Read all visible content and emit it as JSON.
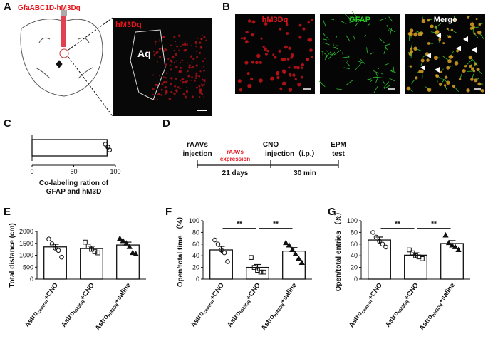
{
  "panel_labels": [
    "A",
    "B",
    "C",
    "D",
    "E",
    "F",
    "G"
  ],
  "panel_a": {
    "construct": "GfaABC1D-hM3Dq",
    "inset_label": "hM3Dq",
    "region": "Aq"
  },
  "panel_b": {
    "channels": [
      {
        "name": "hM3Dq",
        "color": "#e8141b"
      },
      {
        "name": "GFAP",
        "color": "#22cc22"
      },
      {
        "name": "Merge",
        "color": "#ffffff"
      }
    ]
  },
  "panel_d": {
    "injection": [
      "rAAVs",
      "injection"
    ],
    "expression": [
      "rAAVs",
      "expression"
    ],
    "cno": [
      "CNO",
      "injection（i.p.）"
    ],
    "test": [
      "EPM",
      "test"
    ],
    "intervals": [
      "21 days",
      "30 min"
    ]
  },
  "chart_data": [
    {
      "type": "hbar",
      "values": [
        90
      ],
      "errors": [
        1.5
      ],
      "points": [
        [
          88,
          91,
          93
        ]
      ],
      "markers": [
        "circle"
      ],
      "color": "#ffffff",
      "xlim": [
        0,
        100
      ],
      "xticks": [
        0,
        50,
        100
      ],
      "x_label": [
        "Co-labeling ration of",
        "GFAP and hM3D"
      ]
    },
    {
      "type": "bar",
      "categories": [
        [
          "Astro",
          "control",
          "+CNO"
        ],
        [
          "Astro",
          "hM3Dq",
          "+CNO"
        ],
        [
          "Astro",
          "hM3Dq",
          "+saline"
        ]
      ],
      "values": [
        1350,
        1280,
        1430
      ],
      "errors": [
        110,
        100,
        120
      ],
      "points": [
        [
          1680,
          1480,
          1300,
          1200,
          920
        ],
        [
          1550,
          1380,
          1250,
          1150,
          1100
        ],
        [
          1700,
          1600,
          1500,
          1350,
          1100,
          1050
        ]
      ],
      "markers": [
        "circle",
        "square",
        "triangle"
      ],
      "color": "#ffffff",
      "ylim": [
        0,
        2000
      ],
      "yticks": [
        0,
        500,
        1000,
        1500,
        2000
      ],
      "y_label": "Total distance (cm)"
    },
    {
      "type": "bar",
      "categories": [
        [
          "Astro",
          "control",
          "+CNO"
        ],
        [
          "Astro",
          "hM3Dq",
          "+CNO"
        ],
        [
          "Astro",
          "hM3Dq",
          "+saline"
        ]
      ],
      "values": [
        50,
        20,
        48
      ],
      "errors": [
        6,
        5,
        6
      ],
      "points": [
        [
          67,
          60,
          50,
          45,
          30
        ],
        [
          37,
          20,
          15,
          12,
          12
        ],
        [
          62,
          58,
          50,
          43,
          35,
          28
        ]
      ],
      "markers": [
        "circle",
        "square",
        "triangle"
      ],
      "color": "#ffffff",
      "ylim": [
        0,
        100
      ],
      "yticks": [
        0,
        20,
        40,
        60,
        80,
        100
      ],
      "y_label": "Open/total time （%）",
      "significance": [
        {
          "from": 0,
          "to": 1,
          "label": "**",
          "y": 87
        },
        {
          "from": 1,
          "to": 2,
          "label": "**",
          "y": 87
        }
      ]
    },
    {
      "type": "bar",
      "categories": [
        [
          "Astro",
          "control",
          "+CNO"
        ],
        [
          "Astro",
          "hM3Dq",
          "+CNO"
        ],
        [
          "Astro",
          "hM3Dq",
          "+saline"
        ]
      ],
      "values": [
        67,
        41,
        61
      ],
      "errors": [
        5,
        4,
        5
      ],
      "points": [
        [
          80,
          72,
          65,
          60,
          55
        ],
        [
          50,
          45,
          40,
          38,
          35
        ],
        [
          75,
          62,
          58,
          55,
          50
        ]
      ],
      "markers": [
        "circle",
        "square",
        "triangle"
      ],
      "color": "#ffffff",
      "ylim": [
        0,
        100
      ],
      "yticks": [
        0,
        20,
        40,
        60,
        80,
        100
      ],
      "y_label": "Open/total entries （%）",
      "significance": [
        {
          "from": 0,
          "to": 1,
          "label": "**",
          "y": 87
        },
        {
          "from": 1,
          "to": 2,
          "label": "**",
          "y": 87
        }
      ]
    }
  ]
}
